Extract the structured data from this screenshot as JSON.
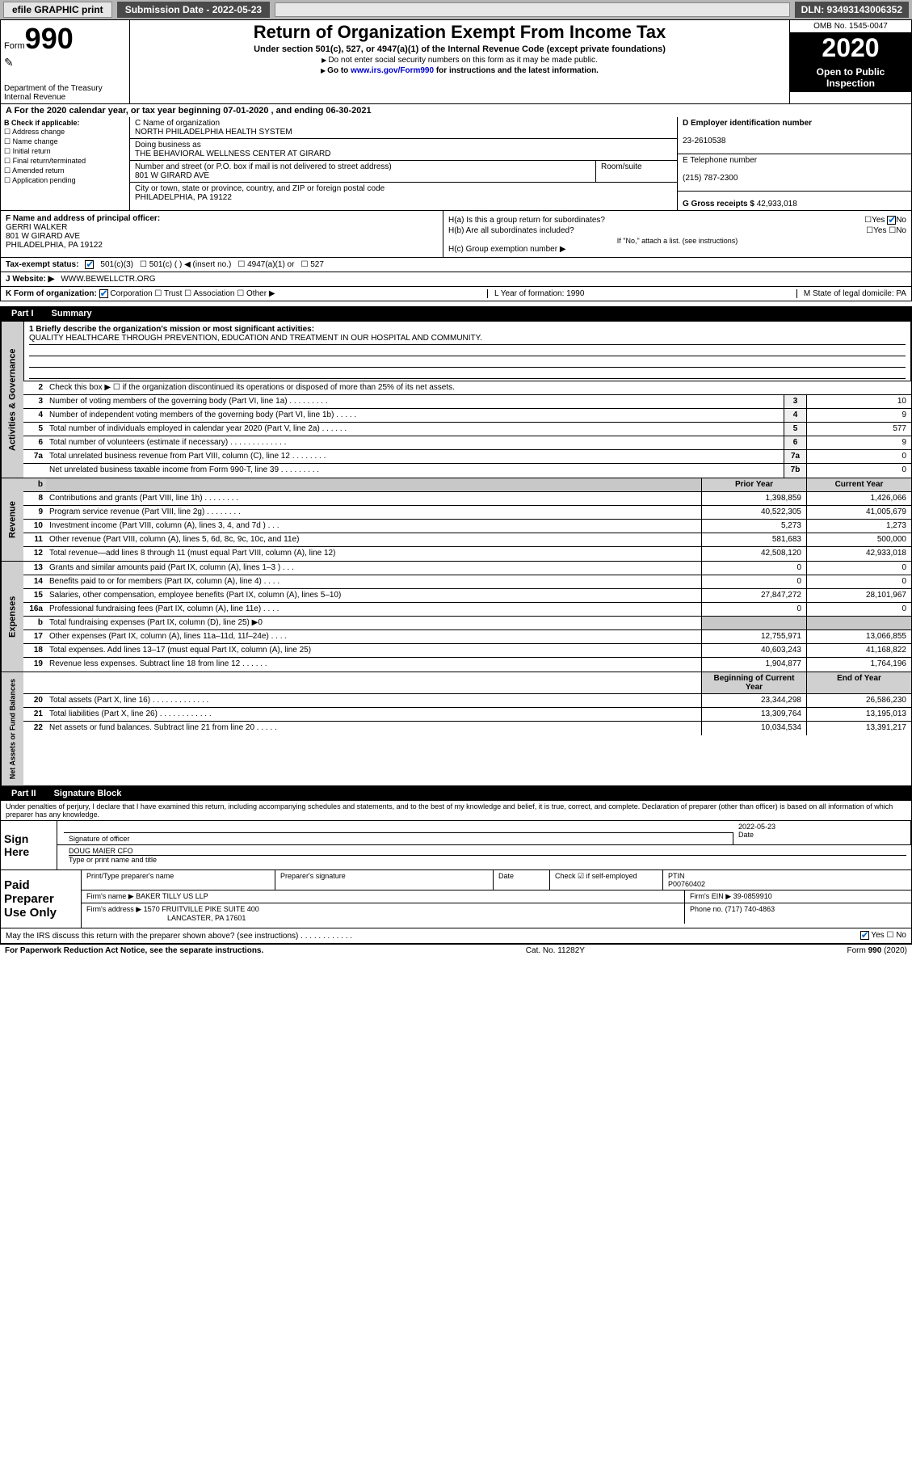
{
  "topbar": {
    "efile": "efile GRAPHIC print",
    "submission": "Submission Date - 2022-05-23",
    "dln": "DLN: 93493143006352"
  },
  "header": {
    "form_prefix": "Form",
    "form_num": "990",
    "dept": "Department of the Treasury Internal Revenue",
    "title": "Return of Organization Exempt From Income Tax",
    "subtitle": "Under section 501(c), 527, or 4947(a)(1) of the Internal Revenue Code (except private foundations)",
    "note1": "Do not enter social security numbers on this form as it may be made public.",
    "note2_pre": "Go to ",
    "note2_link": "www.irs.gov/Form990",
    "note2_post": " for instructions and the latest information.",
    "omb": "OMB No. 1545-0047",
    "year": "2020",
    "inspect": "Open to Public Inspection"
  },
  "period": "A For the 2020 calendar year, or tax year beginning 07-01-2020       , and ending 06-30-2021",
  "B": {
    "label": "B Check if applicable:",
    "opts": [
      "Address change",
      "Name change",
      "Initial return",
      "Final return/terminated",
      "Amended return",
      "Application pending"
    ]
  },
  "C": {
    "name_lbl": "C Name of organization",
    "name": "NORTH PHILADELPHIA HEALTH SYSTEM",
    "dba_lbl": "Doing business as",
    "dba": "THE BEHAVIORAL WELLNESS CENTER AT GIRARD",
    "addr_lbl": "Number and street (or P.O. box if mail is not delivered to street address)",
    "room_lbl": "Room/suite",
    "addr": "801 W GIRARD AVE",
    "city_lbl": "City or town, state or province, country, and ZIP or foreign postal code",
    "city": "PHILADELPHIA, PA  19122"
  },
  "D": {
    "lbl": "D Employer identification number",
    "val": "23-2610538"
  },
  "E": {
    "lbl": "E Telephone number",
    "val": "(215) 787-2300"
  },
  "G": {
    "lbl": "G Gross receipts $",
    "val": "42,933,018"
  },
  "F": {
    "lbl": "F  Name and address of principal officer:",
    "name": "GERRI WALKER",
    "addr1": "801 W GIRARD AVE",
    "addr2": "PHILADELPHIA, PA  19122"
  },
  "H": {
    "a": "H(a)  Is this a group return for subordinates?",
    "b": "H(b)  Are all subordinates included?",
    "bnote": "If \"No,\" attach a list. (see instructions)",
    "c": "H(c)  Group exemption number ▶",
    "yes": "Yes",
    "no": "No"
  },
  "tax": {
    "lbl": "Tax-exempt status:",
    "o1": "501(c)(3)",
    "o2": "501(c) (   ) ◀ (insert no.)",
    "o3": "4947(a)(1) or",
    "o4": "527"
  },
  "J": {
    "lbl": "J     Website: ▶",
    "val": "WWW.BEWELLCTR.ORG"
  },
  "K": {
    "lbl": "K Form of organization:",
    "corp": "Corporation",
    "trust": "Trust",
    "assoc": "Association",
    "other": "Other ▶",
    "L": "L Year of formation: 1990",
    "M": "M State of legal domicile: PA"
  },
  "part1": {
    "bar": "Part I",
    "title": "Summary"
  },
  "mission": {
    "q": "1  Briefly describe the organization's mission or most significant activities:",
    "txt": "QUALITY HEALTHCARE THROUGH PREVENTION, EDUCATION AND TREATMENT IN OUR HOSPITAL AND COMMUNITY."
  },
  "gov": {
    "tab": "Activities & Governance",
    "r2": "Check this box ▶ ☐  if the organization discontinued its operations or disposed of more than 25% of its net assets.",
    "rows": [
      {
        "n": "3",
        "d": "Number of voting members of the governing body (Part VI, line 1a)   .    .    .    .    .    .    .    .    .",
        "b": "3",
        "v": "10"
      },
      {
        "n": "4",
        "d": "Number of independent voting members of the governing body (Part VI, line 1b)   .    .    .    .    .",
        "b": "4",
        "v": "9"
      },
      {
        "n": "5",
        "d": "Total number of individuals employed in calendar year 2020 (Part V, line 2a)   .    .    .    .    .    .",
        "b": "5",
        "v": "577"
      },
      {
        "n": "6",
        "d": "Total number of volunteers (estimate if necessary)    .    .    .    .    .    .    .    .    .    .    .    .    .",
        "b": "6",
        "v": "9"
      },
      {
        "n": "7a",
        "d": "Total unrelated business revenue from Part VIII, column (C), line 12   .    .    .    .    .    .    .    .",
        "b": "7a",
        "v": "0"
      },
      {
        "n": "",
        "d": "Net unrelated business taxable income from Form 990-T, line 39    .    .    .    .    .    .    .    .    .",
        "b": "7b",
        "v": "0"
      }
    ]
  },
  "rev": {
    "tab": "Revenue",
    "hdr_prior": "Prior Year",
    "hdr_curr": "Current Year",
    "rows": [
      {
        "n": "8",
        "d": "Contributions and grants (Part VIII, line 1h)    .    .    .    .    .    .    .    .",
        "p": "1,398,859",
        "c": "1,426,066"
      },
      {
        "n": "9",
        "d": "Program service revenue (Part VIII, line 2g)    .    .    .    .    .    .    .    .",
        "p": "40,522,305",
        "c": "41,005,679"
      },
      {
        "n": "10",
        "d": "Investment income (Part VIII, column (A), lines 3, 4, and 7d )    .    .    .",
        "p": "5,273",
        "c": "1,273"
      },
      {
        "n": "11",
        "d": "Other revenue (Part VIII, column (A), lines 5, 6d, 8c, 9c, 10c, and 11e)",
        "p": "581,683",
        "c": "500,000"
      },
      {
        "n": "12",
        "d": "Total revenue—add lines 8 through 11 (must equal Part VIII, column (A), line 12)",
        "p": "42,508,120",
        "c": "42,933,018"
      }
    ]
  },
  "exp": {
    "tab": "Expenses",
    "rows": [
      {
        "n": "13",
        "d": "Grants and similar amounts paid (Part IX, column (A), lines 1–3 )   .    .    .",
        "p": "0",
        "c": "0"
      },
      {
        "n": "14",
        "d": "Benefits paid to or for members (Part IX, column (A), line 4)   .    .    .    .",
        "p": "0",
        "c": "0"
      },
      {
        "n": "15",
        "d": "Salaries, other compensation, employee benefits (Part IX, column (A), lines 5–10)",
        "p": "27,847,272",
        "c": "28,101,967"
      },
      {
        "n": "16a",
        "d": "Professional fundraising fees (Part IX, column (A), line 11e)   .    .    .    .",
        "p": "0",
        "c": "0"
      },
      {
        "n": "b",
        "d": "Total fundraising expenses (Part IX, column (D), line 25) ▶0",
        "p": "GRAY",
        "c": "GRAY"
      },
      {
        "n": "17",
        "d": "Other expenses (Part IX, column (A), lines 11a–11d, 11f–24e)   .    .    .    .",
        "p": "12,755,971",
        "c": "13,066,855"
      },
      {
        "n": "18",
        "d": "Total expenses. Add lines 13–17 (must equal Part IX, column (A), line 25)",
        "p": "40,603,243",
        "c": "41,168,822"
      },
      {
        "n": "19",
        "d": "Revenue less expenses. Subtract line 18 from line 12   .    .    .    .    .    .",
        "p": "1,904,877",
        "c": "1,764,196"
      }
    ]
  },
  "net": {
    "tab": "Net Assets or Fund Balances",
    "hdr_begin": "Beginning of Current Year",
    "hdr_end": "End of Year",
    "rows": [
      {
        "n": "20",
        "d": "Total assets (Part X, line 16)   .    .    .    .    .    .    .    .    .    .    .    .    .",
        "p": "23,344,298",
        "c": "26,586,230"
      },
      {
        "n": "21",
        "d": "Total liabilities (Part X, line 26)   .    .    .    .    .    .    .    .    .    .    .    .",
        "p": "13,309,764",
        "c": "13,195,013"
      },
      {
        "n": "22",
        "d": "Net assets or fund balances. Subtract line 21 from line 20   .    .    .    .    .",
        "p": "10,034,534",
        "c": "13,391,217"
      }
    ]
  },
  "part2": {
    "bar": "Part II",
    "title": "Signature Block"
  },
  "sig": {
    "decl": "Under penalties of perjury, I declare that I have examined this return, including accompanying schedules and statements, and to the best of my knowledge and belief, it is true, correct, and complete. Declaration of preparer (other than officer) is based on all information of which preparer has any knowledge.",
    "sign_here": "Sign Here",
    "sig_off": "Signature of officer",
    "date": "2022-05-23",
    "date_lbl": "Date",
    "name": "DOUG MAIER CFO",
    "name_lbl": "Type or print name and title"
  },
  "prep": {
    "lbl": "Paid Preparer Use Only",
    "h1": "Print/Type preparer's name",
    "h2": "Preparer's signature",
    "h3": "Date",
    "chk": "Check ☑ if self-employed",
    "ptin_lbl": "PTIN",
    "ptin": "P00760402",
    "firm_lbl": "Firm's name    ▶",
    "firm": "BAKER TILLY US LLP",
    "ein_lbl": "Firm's EIN ▶",
    "ein": "39-0859910",
    "addr_lbl": "Firm's address ▶",
    "addr1": "1570 FRUITVILLE PIKE SUITE 400",
    "addr2": "LANCASTER, PA  17601",
    "phone_lbl": "Phone no.",
    "phone": "(717) 740-4863"
  },
  "discuss": "May the IRS discuss this return with the preparer shown above? (see instructions)    .    .    .    .    .    .    .    .    .    .    .    .",
  "foot": {
    "pra": "For Paperwork Reduction Act Notice, see the separate instructions.",
    "cat": "Cat. No. 11282Y",
    "form": "Form 990 (2020)"
  }
}
